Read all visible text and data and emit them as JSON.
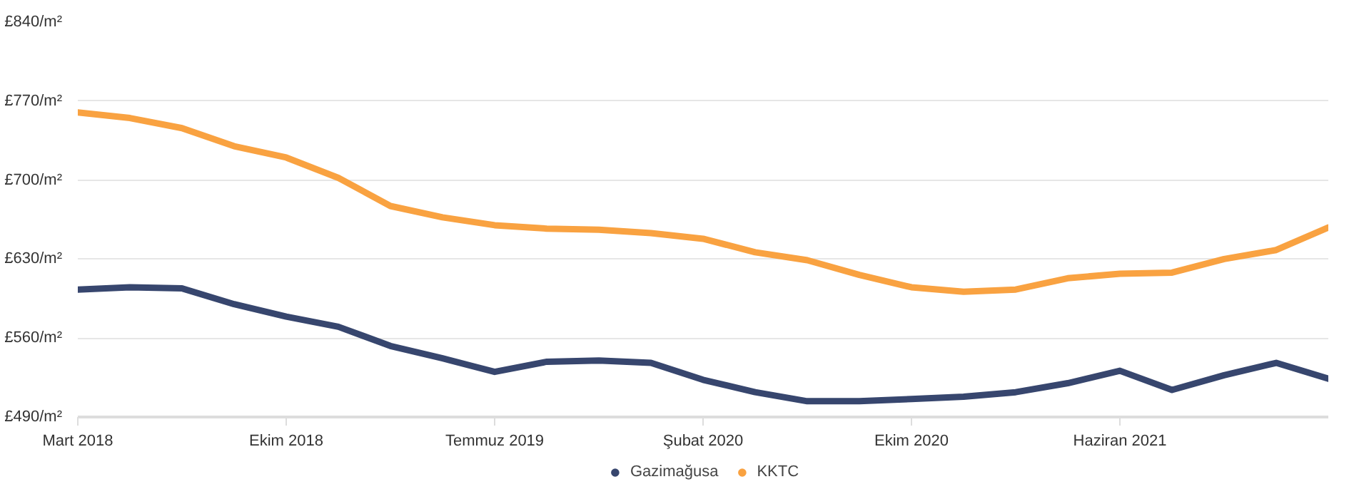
{
  "chart_data": {
    "type": "line",
    "categories": [
      "Mart 2018",
      null,
      null,
      null,
      "Ekim 2018",
      null,
      null,
      null,
      "Temmuz 2019",
      null,
      null,
      null,
      "Şubat 2020",
      null,
      null,
      null,
      "Ekim 2020",
      null,
      null,
      null,
      "Haziran 2021",
      null,
      null,
      null,
      null
    ],
    "ylim": [
      490,
      840
    ],
    "yticks": [
      {
        "value": 490,
        "label": "£490/m²"
      },
      {
        "value": 560,
        "label": "£560/m²"
      },
      {
        "value": 630,
        "label": "£630/m²"
      },
      {
        "value": 700,
        "label": "£700/m²"
      },
      {
        "value": 770,
        "label": "£770/m²"
      },
      {
        "value": 840,
        "label": "£840/m²"
      }
    ],
    "series": [
      {
        "name": "Gazimağusa",
        "color": "#37466e",
        "values": [
          603,
          605,
          604,
          590,
          579,
          570,
          553,
          542,
          530,
          539,
          540,
          538,
          523,
          512,
          504,
          504,
          506,
          508,
          512,
          520,
          531,
          514,
          527,
          538,
          524
        ]
      },
      {
        "name": "KKTC",
        "color": "#f9a241",
        "values": [
          760,
          755,
          746,
          730,
          720,
          702,
          677,
          667,
          660,
          657,
          656,
          653,
          648,
          636,
          629,
          616,
          605,
          601,
          603,
          613,
          617,
          618,
          630,
          638,
          658
        ]
      }
    ],
    "grid": "y",
    "legend": "bottom",
    "marker": "none",
    "line_style": "solid"
  }
}
